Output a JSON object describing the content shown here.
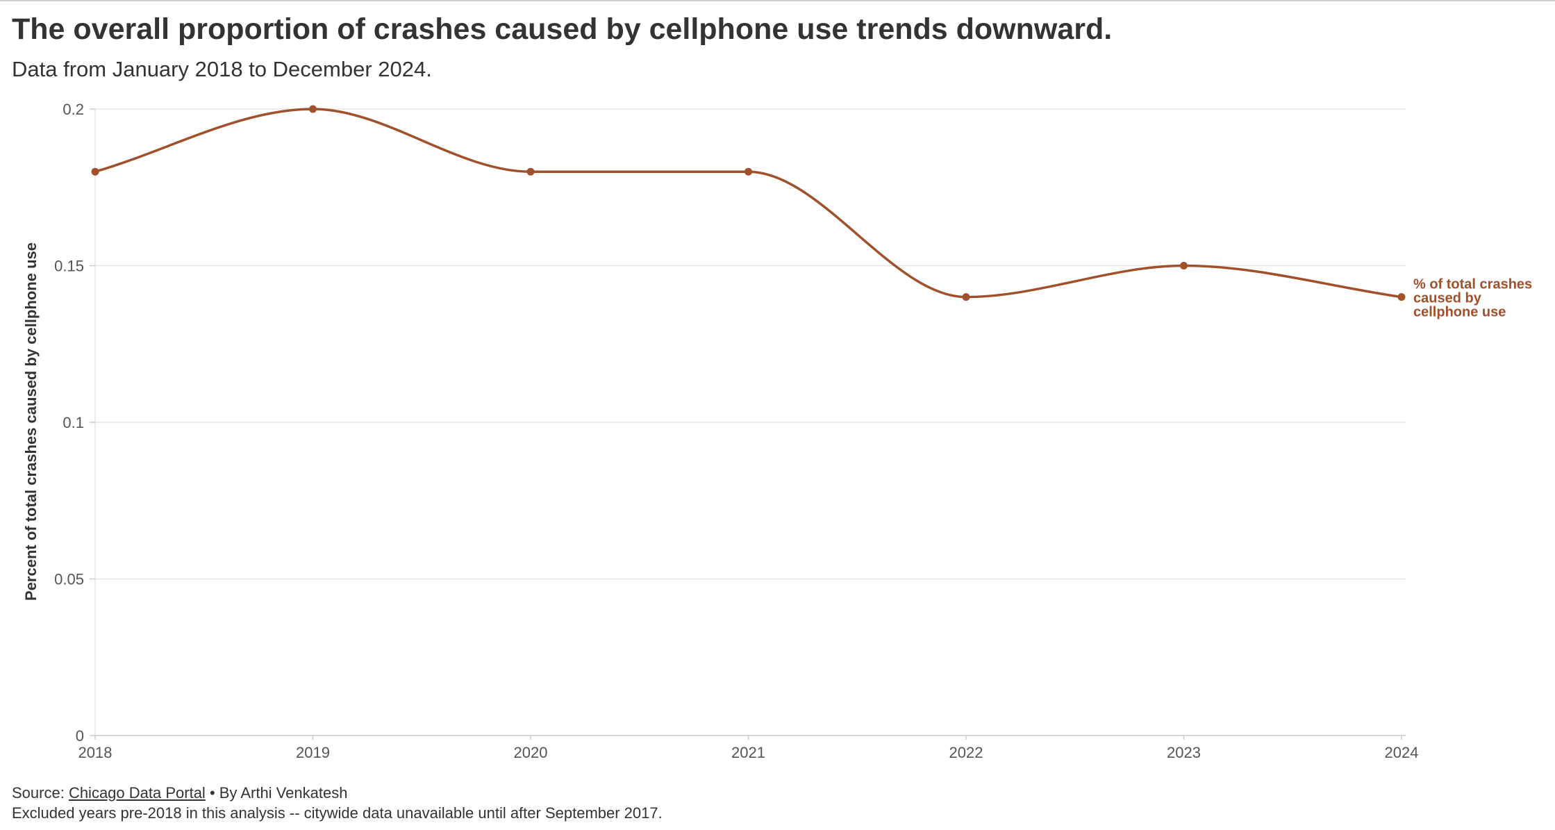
{
  "header": {
    "title": "The overall proportion of crashes caused by cellphone use trends downward.",
    "subtitle": "Data from January 2018 to December 2024."
  },
  "footer": {
    "source_prefix": "Source: ",
    "source_link": "Chicago Data Portal",
    "source_suffix": " • By Arthi Venkatesh",
    "note": "Excluded years pre-2018 in this analysis -- citywide data unavailable until after September 2017."
  },
  "colors": {
    "line": "#a0502a",
    "grid": "#e6e6e6",
    "text": "#333333"
  },
  "chart_data": {
    "type": "line",
    "title": "The overall proportion of crashes caused by cellphone use trends downward.",
    "subtitle": "Data from January 2018 to December 2024.",
    "xlabel": "",
    "ylabel": "Percent of total crashes caused by cellphone use",
    "x": [
      2018,
      2019,
      2020,
      2021,
      2022,
      2023,
      2024
    ],
    "x_tick_labels": [
      "2018",
      "2019",
      "2020",
      "2021",
      "2022",
      "2023",
      "2024"
    ],
    "ylim": [
      0,
      0.2
    ],
    "y_ticks": [
      0,
      0.05,
      0.1,
      0.15,
      0.2
    ],
    "y_tick_labels": [
      "0",
      "0.05",
      "0.1",
      "0.15",
      "0.2"
    ],
    "grid": true,
    "legend": "end-of-line label",
    "series": [
      {
        "name": "% of total crashes caused by cellphone use",
        "label_lines": [
          "% of total crashes",
          "caused by",
          "cellphone use"
        ],
        "values": [
          0.18,
          0.2,
          0.18,
          0.18,
          0.14,
          0.15,
          0.14
        ]
      }
    ]
  }
}
